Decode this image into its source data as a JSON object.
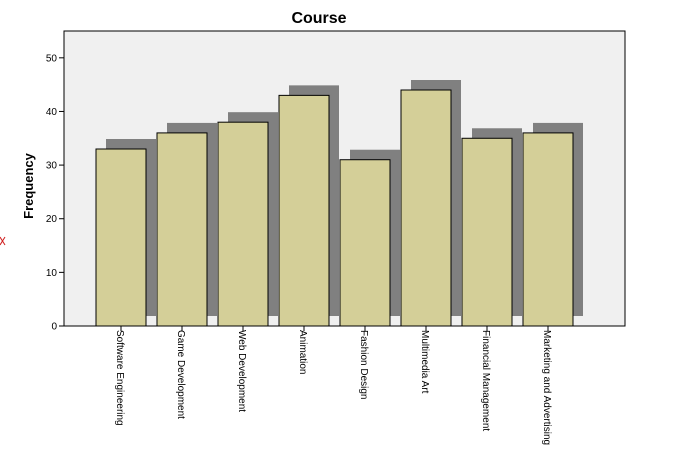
{
  "chart_data": {
    "type": "bar",
    "title": "Course",
    "xlabel": "",
    "ylabel": "Frequency",
    "categories": [
      "Software Engineering",
      "Game Development",
      "Web Development",
      "Animation",
      "Fashion Design",
      "Multimedia Art",
      "Financial Management",
      "Marketing and Advertising"
    ],
    "values": [
      33,
      36,
      38,
      43,
      31,
      44,
      35,
      36
    ],
    "ylim": [
      0,
      55
    ],
    "yticks": [
      "0",
      "10",
      "20",
      "30",
      "40",
      "50"
    ],
    "grid": false,
    "legend": "none",
    "style": "3d-shadow"
  },
  "colors": {
    "bar_fill": "#d4cf98",
    "bar_stroke": "#000000",
    "shadow": "#808080",
    "plot_bg": "#f0f0f0",
    "page_bg": "#ffffff"
  }
}
